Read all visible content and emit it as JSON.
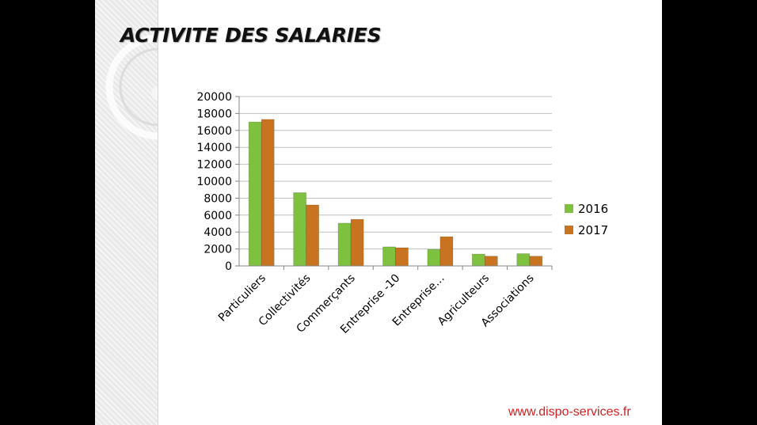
{
  "slide": {
    "title": "ACTIVITE DES SALARIES",
    "website": "www.dispo-services.fr"
  },
  "colors": {
    "series_2016": "#7ec13e",
    "series_2017": "#c8731f",
    "title": "#111111",
    "website": "#d21f1f",
    "grid": "#bfbfbf"
  },
  "chart_data": {
    "type": "bar",
    "title": "",
    "xlabel": "",
    "ylabel": "",
    "ylim": [
      0,
      20000
    ],
    "yticks": [
      0,
      2000,
      4000,
      6000,
      8000,
      10000,
      12000,
      14000,
      16000,
      18000,
      20000
    ],
    "grid": true,
    "legend_position": "right",
    "categories": [
      "Particuliers",
      "Collectivités",
      "Commerçants",
      "Entreprise -10",
      "Entreprise…",
      "Agriculteurs",
      "Associations"
    ],
    "series": [
      {
        "name": "2016",
        "color": "#7ec13e",
        "values": [
          17000,
          8650,
          5050,
          2250,
          1950,
          1400,
          1450
        ]
      },
      {
        "name": "2017",
        "color": "#c8731f",
        "values": [
          17300,
          7200,
          5500,
          2150,
          3450,
          1150,
          1150
        ]
      }
    ]
  }
}
